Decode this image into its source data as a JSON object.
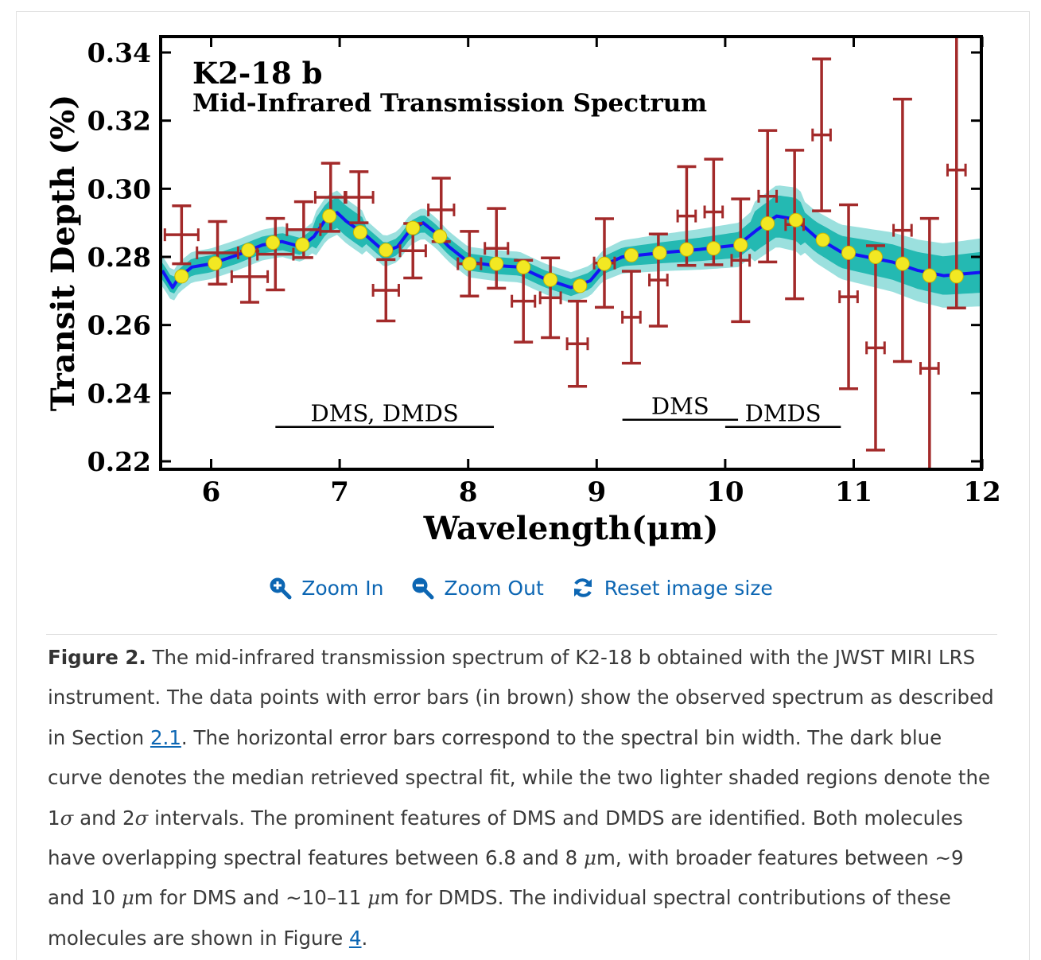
{
  "chart_data": {
    "type": "scatter",
    "title": "K2-18 b",
    "subtitle": "Mid-Infrared Transmission Spectrum",
    "xlabel": "Wavelength(μm)",
    "ylabel": "Transit Depth (%)",
    "xlim": [
      5.6,
      12.0
    ],
    "ylim": [
      0.22,
      0.34
    ],
    "x_ticks": [
      6,
      7,
      8,
      9,
      10,
      11,
      12
    ],
    "x_tick_labels": [
      "6",
      "7",
      "8",
      "9",
      "10",
      "11",
      "12"
    ],
    "y_ticks": [
      0.22,
      0.24,
      0.26,
      0.28,
      0.3,
      0.32,
      0.34
    ],
    "y_tick_labels": [
      "0.22",
      "0.24",
      "0.26",
      "0.28",
      "0.30",
      "0.32",
      "0.34"
    ],
    "grid": false,
    "colors": {
      "observed": "#a32a2a",
      "model_median": "#1414f5",
      "band_1sigma": "#24b9b2",
      "band_2sigma": "#9be0de",
      "binned_model": "#f2e823"
    },
    "observed": [
      {
        "x": 5.77,
        "xerr": 0.13,
        "y": 0.2865,
        "yerr": 0.0085
      },
      {
        "x": 6.05,
        "xerr": 0.16,
        "y": 0.2812,
        "yerr": 0.0092
      },
      {
        "x": 6.3,
        "xerr": 0.14,
        "y": 0.2742,
        "yerr": 0.0075
      },
      {
        "x": 6.5,
        "xerr": 0.14,
        "y": 0.2808,
        "yerr": 0.0105
      },
      {
        "x": 6.72,
        "xerr": 0.13,
        "y": 0.288,
        "yerr": 0.0082
      },
      {
        "x": 6.93,
        "xerr": 0.12,
        "y": 0.2975,
        "yerr": 0.01
      },
      {
        "x": 7.15,
        "xerr": 0.11,
        "y": 0.2975,
        "yerr": 0.0075
      },
      {
        "x": 7.36,
        "xerr": 0.1,
        "y": 0.2702,
        "yerr": 0.009
      },
      {
        "x": 7.57,
        "xerr": 0.1,
        "y": 0.2818,
        "yerr": 0.008
      },
      {
        "x": 7.79,
        "xerr": 0.1,
        "y": 0.2938,
        "yerr": 0.0093
      },
      {
        "x": 8.01,
        "xerr": 0.09,
        "y": 0.278,
        "yerr": 0.0095
      },
      {
        "x": 8.22,
        "xerr": 0.09,
        "y": 0.2825,
        "yerr": 0.0117
      },
      {
        "x": 8.43,
        "xerr": 0.09,
        "y": 0.267,
        "yerr": 0.012
      },
      {
        "x": 8.64,
        "xerr": 0.08,
        "y": 0.268,
        "yerr": 0.0117
      },
      {
        "x": 8.85,
        "xerr": 0.08,
        "y": 0.2545,
        "yerr": 0.0125
      },
      {
        "x": 9.06,
        "xerr": 0.08,
        "y": 0.2782,
        "yerr": 0.013
      },
      {
        "x": 9.27,
        "xerr": 0.07,
        "y": 0.2623,
        "yerr": 0.0135
      },
      {
        "x": 9.48,
        "xerr": 0.07,
        "y": 0.2732,
        "yerr": 0.0135
      },
      {
        "x": 9.7,
        "xerr": 0.07,
        "y": 0.292,
        "yerr": 0.0145
      },
      {
        "x": 9.91,
        "xerr": 0.07,
        "y": 0.2932,
        "yerr": 0.0155
      },
      {
        "x": 10.12,
        "xerr": 0.07,
        "y": 0.279,
        "yerr": 0.018
      },
      {
        "x": 10.33,
        "xerr": 0.07,
        "y": 0.2978,
        "yerr": 0.0193
      },
      {
        "x": 10.54,
        "xerr": 0.07,
        "y": 0.2895,
        "yerr": 0.0218
      },
      {
        "x": 10.75,
        "xerr": 0.07,
        "y": 0.3158,
        "yerr": 0.0223
      },
      {
        "x": 10.96,
        "xerr": 0.07,
        "y": 0.2683,
        "yerr": 0.027
      },
      {
        "x": 11.17,
        "xerr": 0.07,
        "y": 0.2533,
        "yerr": 0.03
      },
      {
        "x": 11.38,
        "xerr": 0.07,
        "y": 0.2878,
        "yerr": 0.0385
      },
      {
        "x": 11.59,
        "xerr": 0.07,
        "y": 0.2473,
        "yerr": 0.044
      },
      {
        "x": 11.8,
        "xerr": 0.07,
        "y": 0.3055,
        "yerr": 0.0405
      }
    ],
    "binned_model": [
      {
        "x": 5.77,
        "y": 0.2743
      },
      {
        "x": 6.03,
        "y": 0.2781
      },
      {
        "x": 6.29,
        "y": 0.282
      },
      {
        "x": 6.48,
        "y": 0.2842
      },
      {
        "x": 6.71,
        "y": 0.2836
      },
      {
        "x": 6.92,
        "y": 0.292
      },
      {
        "x": 7.16,
        "y": 0.2872
      },
      {
        "x": 7.36,
        "y": 0.282
      },
      {
        "x": 7.57,
        "y": 0.2885
      },
      {
        "x": 7.78,
        "y": 0.286
      },
      {
        "x": 8.01,
        "y": 0.278
      },
      {
        "x": 8.22,
        "y": 0.278
      },
      {
        "x": 8.43,
        "y": 0.277
      },
      {
        "x": 8.64,
        "y": 0.2733
      },
      {
        "x": 8.87,
        "y": 0.2715
      },
      {
        "x": 9.06,
        "y": 0.278
      },
      {
        "x": 9.27,
        "y": 0.2805
      },
      {
        "x": 9.49,
        "y": 0.2812
      },
      {
        "x": 9.7,
        "y": 0.2822
      },
      {
        "x": 9.91,
        "y": 0.2825
      },
      {
        "x": 10.12,
        "y": 0.2835
      },
      {
        "x": 10.33,
        "y": 0.2898
      },
      {
        "x": 10.55,
        "y": 0.2908
      },
      {
        "x": 10.76,
        "y": 0.285
      },
      {
        "x": 10.96,
        "y": 0.2812
      },
      {
        "x": 11.17,
        "y": 0.28
      },
      {
        "x": 11.38,
        "y": 0.278
      },
      {
        "x": 11.59,
        "y": 0.2745
      },
      {
        "x": 11.8,
        "y": 0.2743
      }
    ],
    "model_median": [
      {
        "x": 5.62,
        "y": 0.276
      },
      {
        "x": 5.7,
        "y": 0.271
      },
      {
        "x": 5.75,
        "y": 0.274
      },
      {
        "x": 5.85,
        "y": 0.277
      },
      {
        "x": 6.0,
        "y": 0.278
      },
      {
        "x": 6.2,
        "y": 0.2805
      },
      {
        "x": 6.4,
        "y": 0.2835
      },
      {
        "x": 6.55,
        "y": 0.2845
      },
      {
        "x": 6.7,
        "y": 0.283
      },
      {
        "x": 6.8,
        "y": 0.286
      },
      {
        "x": 6.9,
        "y": 0.2915
      },
      {
        "x": 6.98,
        "y": 0.293
      },
      {
        "x": 7.05,
        "y": 0.2905
      },
      {
        "x": 7.2,
        "y": 0.2865
      },
      {
        "x": 7.35,
        "y": 0.2815
      },
      {
        "x": 7.45,
        "y": 0.283
      },
      {
        "x": 7.55,
        "y": 0.288
      },
      {
        "x": 7.65,
        "y": 0.29
      },
      {
        "x": 7.75,
        "y": 0.287
      },
      {
        "x": 7.85,
        "y": 0.283
      },
      {
        "x": 8.0,
        "y": 0.2785
      },
      {
        "x": 8.2,
        "y": 0.2775
      },
      {
        "x": 8.4,
        "y": 0.277
      },
      {
        "x": 8.6,
        "y": 0.2735
      },
      {
        "x": 8.8,
        "y": 0.271
      },
      {
        "x": 8.95,
        "y": 0.273
      },
      {
        "x": 9.05,
        "y": 0.2775
      },
      {
        "x": 9.2,
        "y": 0.28
      },
      {
        "x": 9.5,
        "y": 0.2812
      },
      {
        "x": 9.8,
        "y": 0.2822
      },
      {
        "x": 10.1,
        "y": 0.2835
      },
      {
        "x": 10.25,
        "y": 0.288
      },
      {
        "x": 10.4,
        "y": 0.292
      },
      {
        "x": 10.55,
        "y": 0.291
      },
      {
        "x": 10.7,
        "y": 0.286
      },
      {
        "x": 10.9,
        "y": 0.2815
      },
      {
        "x": 11.1,
        "y": 0.28
      },
      {
        "x": 11.3,
        "y": 0.2785
      },
      {
        "x": 11.5,
        "y": 0.276
      },
      {
        "x": 11.7,
        "y": 0.2745
      },
      {
        "x": 11.85,
        "y": 0.275
      },
      {
        "x": 12.0,
        "y": 0.2755
      }
    ],
    "band_1sigma_halfwidth": [
      0.0025,
      0.006
    ],
    "band_2sigma_halfwidth": [
      0.0045,
      0.01
    ],
    "annotations": [
      {
        "text": "DMS, DMDS",
        "x_start": 6.5,
        "x_end": 8.2,
        "y": 0.2301
      },
      {
        "text": "DMS",
        "x_start": 9.2,
        "x_end": 10.1,
        "y": 0.2322
      },
      {
        "text": "DMDS",
        "x_start": 10.0,
        "x_end": 10.9,
        "y": 0.2301
      }
    ]
  },
  "zoom": {
    "zoom_in": "Zoom In",
    "zoom_out": "Zoom Out",
    "reset": "Reset image size"
  },
  "caption": {
    "label": "Figure 2.",
    "part1": " The mid-infrared transmission spectrum of K2-18 b obtained with the JWST MIRI LRS instrument. The data points with error bars (in brown) show the observed spectrum as described in Section ",
    "link1": "2.1",
    "part2": ". The horizontal error bars correspond to the spectral bin width. The dark blue curve denotes the median retrieved spectral fit, while the two lighter shaded regions denote the 1",
    "sigma1": "σ",
    "part3": " and 2",
    "sigma2": "σ",
    "part4": " intervals. The prominent features of DMS and DMDS are identified. Both molecules have overlapping spectral features between 6.8 and 8 ",
    "mu1": "μ",
    "part5": "m, with broader features between ∼9 and 10 ",
    "mu2": "μ",
    "part6": "m for DMS and ∼10–11 ",
    "mu3": "μ",
    "part7": "m for DMDS. The individual spectral contributions of these molecules are shown in Figure ",
    "link2": "4",
    "part8": "."
  }
}
